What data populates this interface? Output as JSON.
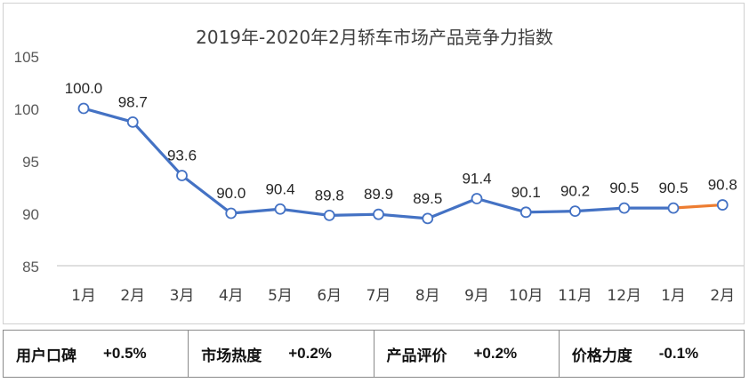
{
  "chart_data": {
    "type": "line",
    "title": "2019年-2020年2月轿车市场产品竞争力指数",
    "categories": [
      "1月",
      "2月",
      "3月",
      "4月",
      "5月",
      "6月",
      "7月",
      "8月",
      "9月",
      "10月",
      "11月",
      "12月",
      "1月",
      "2月"
    ],
    "series": [
      {
        "values": [
          100.0,
          98.7,
          93.6,
          90.0,
          90.4,
          89.8,
          89.9,
          89.5,
          91.4,
          90.1,
          90.2,
          90.5,
          90.5,
          90.8
        ],
        "labels": [
          "100.0",
          "98.7",
          "93.6",
          "90.0",
          "90.4",
          "89.8",
          "89.9",
          "89.5",
          "91.4",
          "90.1",
          "90.2",
          "90.5",
          "90.5",
          "90.8"
        ]
      }
    ],
    "y_ticks": [
      "85",
      "90",
      "95",
      "100",
      "105"
    ],
    "ylim": [
      85,
      105
    ],
    "line_color": "#4472C4",
    "highlight_color": "#ED7D31",
    "highlight_last_segment": true,
    "grid": false,
    "legend": "none"
  },
  "metrics": [
    {
      "label": "用户口碑",
      "value": "+0.5%"
    },
    {
      "label": "市场热度",
      "value": "+0.2%"
    },
    {
      "label": "产品评价",
      "value": "+0.2%"
    },
    {
      "label": "价格力度",
      "value": "-0.1%"
    }
  ]
}
